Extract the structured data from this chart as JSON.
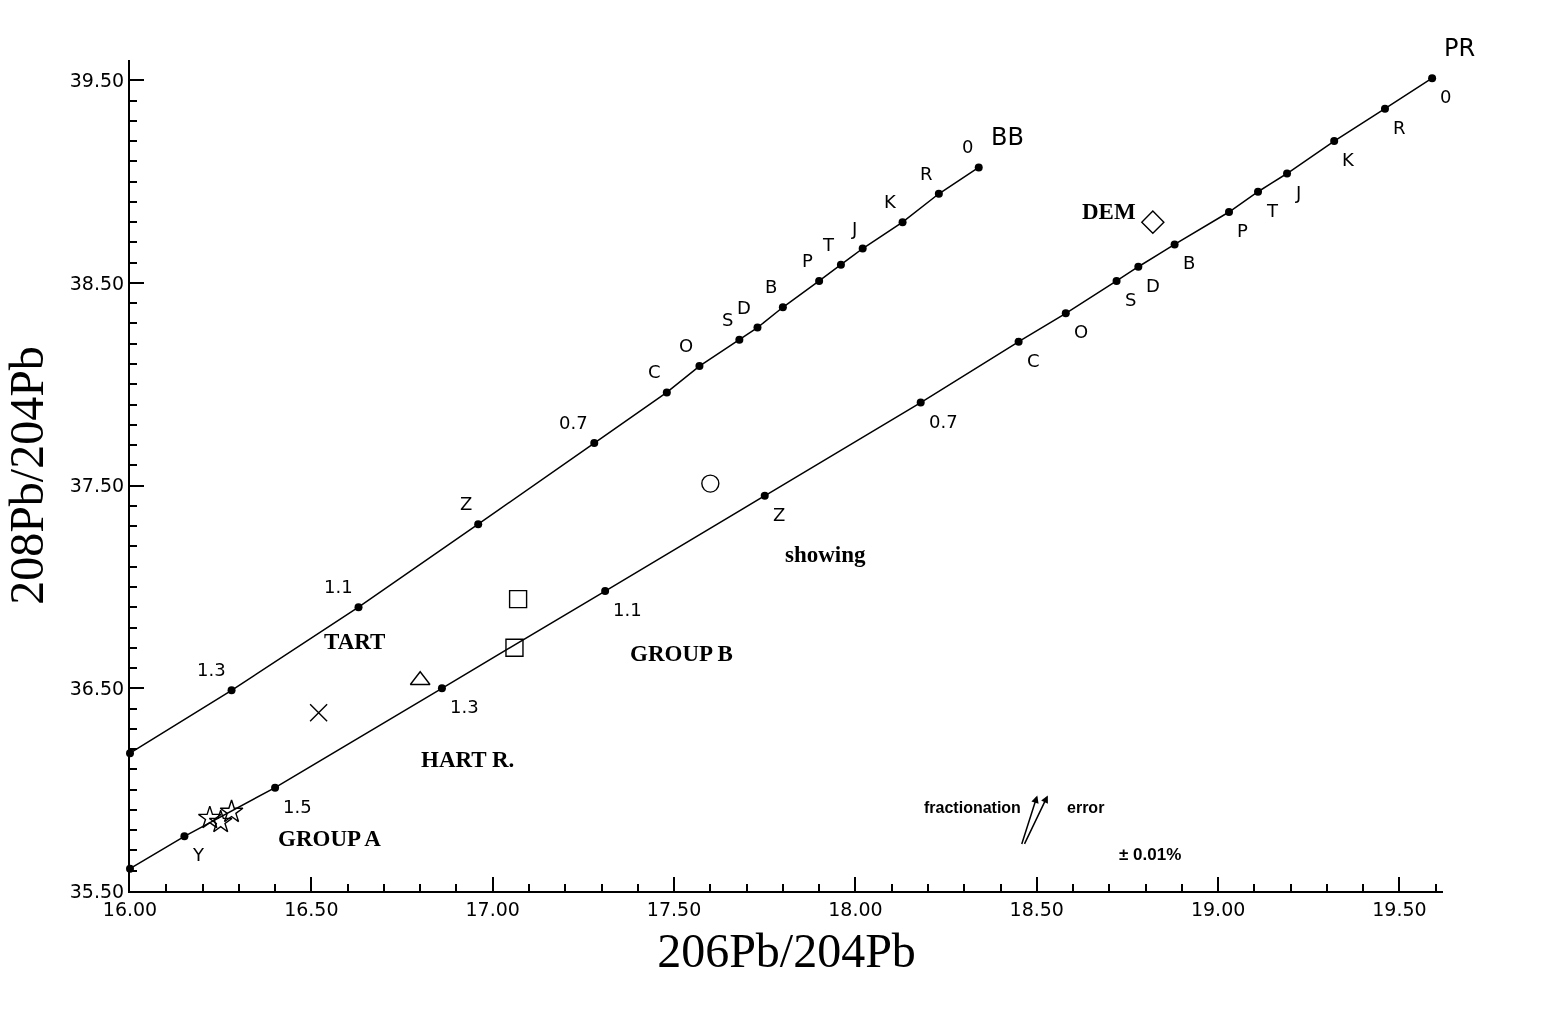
{
  "chart_data": {
    "type": "line",
    "xlabel": "206Pb/204Pb",
    "ylabel": "208Pb/204Pb",
    "xlim": [
      16.0,
      19.62
    ],
    "ylim": [
      35.5,
      39.6
    ],
    "xticks": [
      {
        "value": 16.0,
        "label": "16.00"
      },
      {
        "value": 16.5,
        "label": "16.50"
      },
      {
        "value": 17.0,
        "label": "17.00"
      },
      {
        "value": 17.5,
        "label": "17.50"
      },
      {
        "value": 18.0,
        "label": "18.00"
      },
      {
        "value": 18.5,
        "label": "18.50"
      },
      {
        "value": 19.0,
        "label": "19.00"
      },
      {
        "value": 19.5,
        "label": "19.50"
      }
    ],
    "yticks": [
      {
        "value": 35.5,
        "label": "35.50"
      },
      {
        "value": 36.5,
        "label": "36.50"
      },
      {
        "value": 37.5,
        "label": "37.50"
      },
      {
        "value": 38.5,
        "label": "38.50"
      },
      {
        "value": 39.5,
        "label": "39.50"
      }
    ],
    "series": [
      {
        "name": "BB",
        "marker": "circle",
        "color": "#000000",
        "x": [
          16.0,
          16.28,
          16.63,
          16.96,
          17.28,
          17.48,
          17.57,
          17.68,
          17.73,
          17.8,
          17.9,
          17.96,
          18.02,
          18.13,
          18.23,
          18.34
        ],
        "values": [
          36.18,
          36.49,
          36.9,
          37.31,
          37.71,
          37.96,
          38.09,
          38.22,
          38.28,
          38.38,
          38.51,
          38.59,
          38.67,
          38.8,
          38.94,
          39.07
        ]
      },
      {
        "name": "PR",
        "marker": "circle",
        "color": "#000000",
        "x": [
          16.0,
          16.15,
          16.4,
          16.86,
          17.31,
          17.75,
          18.18,
          18.45,
          18.58,
          18.72,
          18.78,
          18.88,
          19.03,
          19.11,
          19.19,
          19.32,
          19.46,
          19.59
        ],
        "values": [
          35.61,
          35.77,
          36.01,
          36.5,
          36.98,
          37.45,
          37.91,
          38.21,
          38.35,
          38.51,
          38.58,
          38.69,
          38.85,
          38.95,
          39.04,
          39.2,
          39.36,
          39.51
        ]
      },
      {
        "type": "scatter",
        "marker": "star",
        "color": "#000000",
        "x": [
          16.22,
          16.25,
          16.28
        ],
        "values": [
          35.86,
          35.84,
          35.89
        ]
      },
      {
        "type": "scatter",
        "marker": "cross",
        "color": "#000000",
        "x": [
          16.52
        ],
        "values": [
          36.38
        ]
      },
      {
        "type": "scatter",
        "marker": "triangle",
        "color": "#000000",
        "x": [
          16.8
        ],
        "values": [
          36.54
        ]
      },
      {
        "type": "scatter",
        "marker": "square",
        "color": "#000000",
        "x": [
          17.06,
          17.07
        ],
        "values": [
          36.7,
          36.94
        ]
      },
      {
        "type": "scatter",
        "marker": "circle",
        "color": "#000000",
        "x": [
          17.6
        ],
        "values": [
          37.51
        ]
      },
      {
        "type": "scatter",
        "marker": "diamond",
        "color": "#000000",
        "x": [
          18.82
        ],
        "values": [
          38.8
        ]
      }
    ],
    "annotations": [
      {
        "text": "1.3",
        "x": 16.28,
        "y": 36.49
      },
      {
        "text": "1.1",
        "x": 16.63,
        "y": 36.9
      },
      {
        "text": "Z",
        "x": 16.96,
        "y": 37.31
      },
      {
        "text": "0.7",
        "x": 17.28,
        "y": 37.71
      },
      {
        "text": "C",
        "x": 17.48,
        "y": 37.96
      },
      {
        "text": "O",
        "x": 17.57,
        "y": 38.09
      },
      {
        "text": "S",
        "x": 17.68,
        "y": 38.22
      },
      {
        "text": "D",
        "x": 17.73,
        "y": 38.28
      },
      {
        "text": "B",
        "x": 17.8,
        "y": 38.38
      },
      {
        "text": "P",
        "x": 17.9,
        "y": 38.51
      },
      {
        "text": "T",
        "x": 17.96,
        "y": 38.59
      },
      {
        "text": "J",
        "x": 18.02,
        "y": 38.67
      },
      {
        "text": "K",
        "x": 18.13,
        "y": 38.8
      },
      {
        "text": "R",
        "x": 18.23,
        "y": 38.94
      },
      {
        "text": "0",
        "x": 18.34,
        "y": 39.07
      },
      {
        "text": "Y",
        "x": 16.15,
        "y": 35.77
      },
      {
        "text": "1.5",
        "x": 16.4,
        "y": 36.01
      },
      {
        "text": "1.3",
        "x": 16.86,
        "y": 36.5
      },
      {
        "text": "1.1",
        "x": 17.31,
        "y": 36.98
      },
      {
        "text": "Z",
        "x": 17.75,
        "y": 37.45
      },
      {
        "text": "0.7",
        "x": 18.18,
        "y": 37.91
      },
      {
        "text": "C",
        "x": 18.45,
        "y": 38.21
      },
      {
        "text": "O",
        "x": 18.58,
        "y": 38.35
      },
      {
        "text": "S",
        "x": 18.72,
        "y": 38.51
      },
      {
        "text": "D",
        "x": 18.78,
        "y": 38.58
      },
      {
        "text": "B",
        "x": 18.88,
        "y": 38.69
      },
      {
        "text": "P",
        "x": 19.03,
        "y": 38.85
      },
      {
        "text": "T",
        "x": 19.11,
        "y": 38.95
      },
      {
        "text": "J",
        "x": 19.19,
        "y": 39.04
      },
      {
        "text": "K",
        "x": 19.32,
        "y": 39.2
      },
      {
        "text": "R",
        "x": 19.46,
        "y": 39.36
      },
      {
        "text": "0",
        "x": 19.59,
        "y": 39.51
      },
      "TART",
      "GROUP B",
      "HART R.",
      "GROUP A",
      "showing",
      "DEM",
      "fractionation",
      "error",
      "± 0.01%"
    ]
  }
}
